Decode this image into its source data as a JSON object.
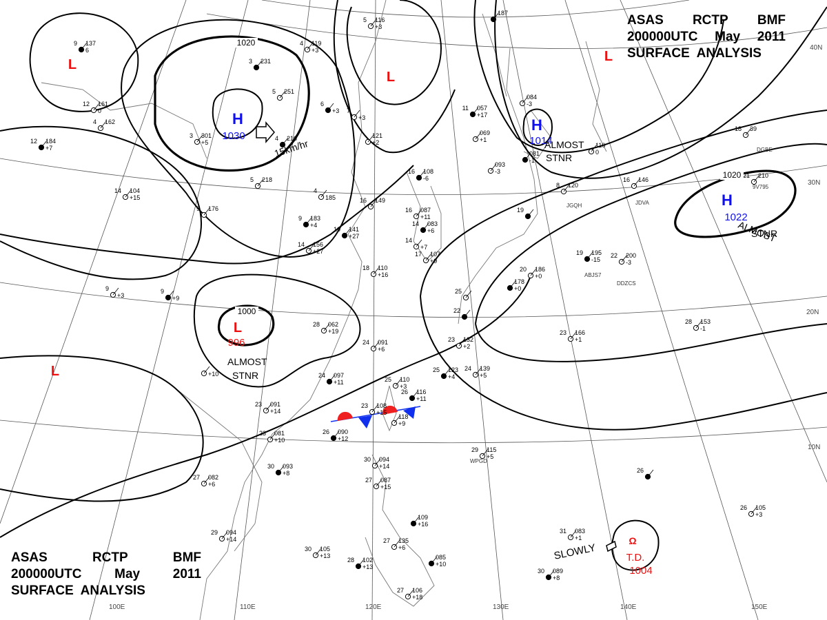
{
  "header": {
    "line1": [
      "ASAS",
      "RCTP",
      "BMF"
    ],
    "line2": [
      "200000UTC",
      "May",
      "2011"
    ],
    "line3": "SURFACE  ANALYSIS"
  },
  "colors": {
    "high": "#1010ee",
    "low": "#ee1010",
    "isobar": "#000000",
    "grid": "#555555",
    "coast": "#777777",
    "warm_front": "#ee2020",
    "cold_front": "#1030ee"
  },
  "isobar_labels": [
    "1020",
    "1000",
    "1020"
  ],
  "pressure_systems": [
    {
      "type": "H",
      "value": "1030"
    },
    {
      "type": "H",
      "value": "1014"
    },
    {
      "type": "H",
      "value": "1022"
    },
    {
      "type": "L",
      "value": "996"
    },
    {
      "type": "L",
      "value": ""
    },
    {
      "type": "L",
      "value": ""
    },
    {
      "type": "L",
      "value": ""
    },
    {
      "type": "L",
      "value": ""
    }
  ],
  "notes": [
    "15km/hr",
    "ALMOST",
    "STNR",
    "ALMOST",
    "STNR",
    "ALMOST",
    "STNR",
    "SLOWLY"
  ],
  "tropical_depression": {
    "label": "T.D.",
    "pressure": "1004"
  },
  "lon_labels": [
    "100E",
    "110E",
    "120E",
    "130E",
    "140E",
    "150E"
  ],
  "lat_labels": [
    "40N",
    "30N",
    "20N",
    "10N"
  ],
  "stations": [
    {
      "t": "9",
      "p": "137",
      "d": "6"
    },
    {
      "t": "12",
      "p": "161",
      "d": "0"
    },
    {
      "t": "4",
      "p": "162",
      "d": ""
    },
    {
      "t": "12",
      "p": "184",
      "d": "+7"
    },
    {
      "t": "14",
      "p": "104",
      "d": "+15"
    },
    {
      "t": "9",
      "p": "176",
      "d": ""
    },
    {
      "t": "3",
      "p": "231",
      "d": ""
    },
    {
      "t": "5",
      "p": "251",
      "d": ""
    },
    {
      "t": "3",
      "p": "301",
      "d": "+5"
    },
    {
      "t": "4",
      "p": "216",
      "d": ""
    },
    {
      "t": "5",
      "p": "218",
      "d": ""
    },
    {
      "t": "4",
      "p": "",
      "d": "185"
    },
    {
      "t": "9",
      "p": "183",
      "d": "+4"
    },
    {
      "t": "14",
      "p": "156",
      "d": "+27"
    },
    {
      "t": "9",
      "p": "",
      "d": "+3"
    },
    {
      "t": "9",
      "p": "",
      "d": "+9"
    },
    {
      "t": "28",
      "p": "062",
      "d": "+19"
    },
    {
      "t": "24",
      "p": "091",
      "d": "+6"
    },
    {
      "t": "24",
      "p": "097",
      "d": "+11"
    },
    {
      "t": "",
      "p": "",
      "d": "+10"
    },
    {
      "t": "23",
      "p": "091",
      "d": "+14"
    },
    {
      "t": "26",
      "p": "090",
      "d": "+12"
    },
    {
      "t": "23",
      "p": "081",
      "d": "+10"
    },
    {
      "t": "27",
      "p": "082",
      "d": "+6"
    },
    {
      "t": "30",
      "p": "093",
      "d": "+8"
    },
    {
      "t": "29",
      "p": "094",
      "d": "+14"
    },
    {
      "t": "30",
      "p": "105",
      "d": "+13"
    },
    {
      "t": "28",
      "p": "102",
      "d": "+13"
    },
    {
      "t": "27",
      "p": "106",
      "d": "+18"
    },
    {
      "t": "27",
      "p": "135",
      "d": "+6"
    },
    {
      "t": "",
      "p": "085",
      "d": "+10"
    },
    {
      "t": "30",
      "p": "094",
      "d": "+14"
    },
    {
      "t": "27",
      "p": "087",
      "d": "+15"
    },
    {
      "t": "",
      "p": "109",
      "d": "+16"
    },
    {
      "t": "25",
      "p": "110",
      "d": "+3"
    },
    {
      "t": "23",
      "p": "108",
      "d": "+15"
    },
    {
      "t": "26",
      "p": "116",
      "d": "+11"
    },
    {
      "t": "",
      "p": "118",
      "d": "+9"
    },
    {
      "t": "29",
      "p": "115",
      "d": "+5"
    },
    {
      "t": "25",
      "p": "123",
      "d": "+4"
    },
    {
      "t": "24",
      "p": "139",
      "d": "+5"
    },
    {
      "t": "23",
      "p": "132",
      "d": "+2"
    },
    {
      "t": "22",
      "p": "",
      "d": ""
    },
    {
      "t": "25",
      "p": "",
      "d": ""
    },
    {
      "t": "18",
      "p": "110",
      "d": "+16"
    },
    {
      "t": "10",
      "p": "141",
      "d": "+27"
    },
    {
      "t": "16",
      "p": "149",
      "d": ""
    },
    {
      "t": "16",
      "p": "087",
      "d": "+11"
    },
    {
      "t": "14",
      "p": "083",
      "d": "+6"
    },
    {
      "t": "14",
      "p": "",
      "d": "+7"
    },
    {
      "t": "17",
      "p": "107",
      "d": "+9"
    },
    {
      "t": "16",
      "p": "108",
      "d": "-6"
    },
    {
      "t": "5",
      "p": "116",
      "d": "+3"
    },
    {
      "t": "4",
      "p": "119",
      "d": "+3"
    },
    {
      "t": "6",
      "p": "",
      "d": "+3"
    },
    {
      "t": "7",
      "p": "",
      "d": "+3"
    },
    {
      "t": "",
      "p": "121",
      "d": "+2"
    },
    {
      "t": "11",
      "p": "057",
      "d": "+17"
    },
    {
      "t": "",
      "p": "069",
      "d": "+1"
    },
    {
      "t": "",
      "p": "084",
      "d": "-3"
    },
    {
      "t": "",
      "p": "081",
      "d": "-1"
    },
    {
      "t": "",
      "p": "093",
      "d": "-3"
    },
    {
      "t": "",
      "p": "110",
      "d": "0"
    },
    {
      "t": "",
      "p": "187",
      "d": ""
    },
    {
      "t": "8",
      "p": "120",
      "d": ""
    },
    {
      "t": "16",
      "p": "146",
      "d": ""
    },
    {
      "t": "19",
      "p": "",
      "d": ""
    },
    {
      "t": "18",
      "p": "39",
      "d": ""
    },
    {
      "t": "21",
      "p": "210",
      "d": ""
    },
    {
      "t": "19",
      "p": "195",
      "d": "-15"
    },
    {
      "t": "22",
      "p": "200",
      "d": "-3"
    },
    {
      "t": "20",
      "p": "186",
      "d": "+0"
    },
    {
      "t": "",
      "p": "178",
      "d": "+0"
    },
    {
      "t": "23",
      "p": "166",
      "d": "+1"
    },
    {
      "t": "28",
      "p": "153",
      "d": "-1"
    },
    {
      "t": "26",
      "p": "",
      "d": ""
    },
    {
      "t": "26",
      "p": "105",
      "d": "+3"
    },
    {
      "t": "31",
      "p": "083",
      "d": "+1"
    },
    {
      "t": "30",
      "p": "089",
      "d": "+8"
    }
  ],
  "ship_ids": [
    "JGQH",
    "JDVA",
    "DGBE",
    "9V795",
    "ABJS7",
    "DDZCS",
    "WPGD"
  ]
}
